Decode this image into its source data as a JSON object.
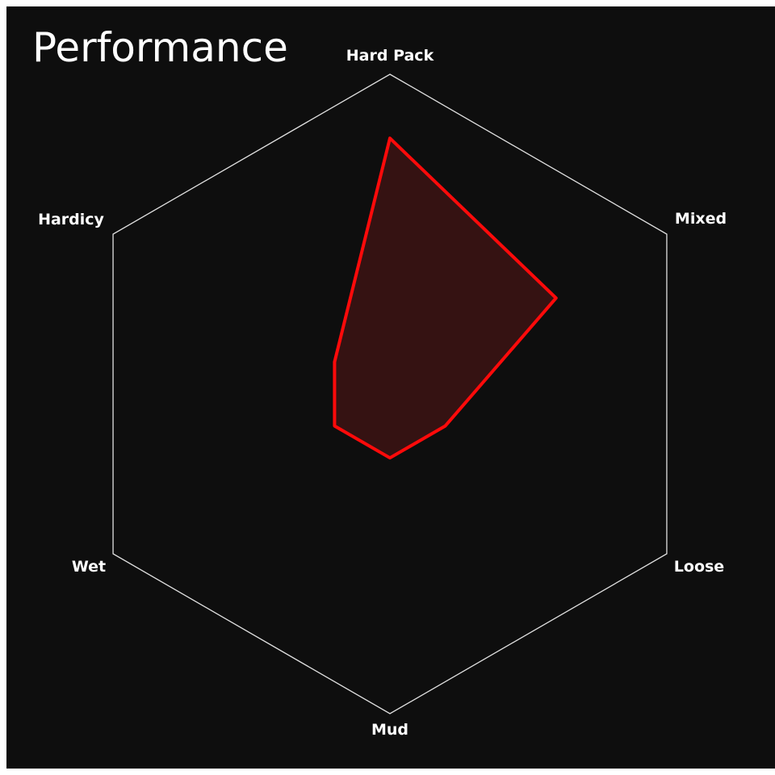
{
  "chart_data": {
    "type": "radar",
    "title": "Performance",
    "axes": [
      "Hard Pack",
      "Mixed",
      "Loose",
      "Mud",
      "Wet",
      "Hardicy"
    ],
    "values": [
      8,
      6,
      2,
      2,
      2,
      2
    ],
    "range": [
      0,
      10
    ],
    "grid": "outer hexagon only",
    "colors": {
      "background": "#0e0e0e",
      "grid": "#e0e0e0",
      "stroke": "#ff0a0a",
      "fill": "#351212",
      "text": "#ffffff"
    }
  }
}
